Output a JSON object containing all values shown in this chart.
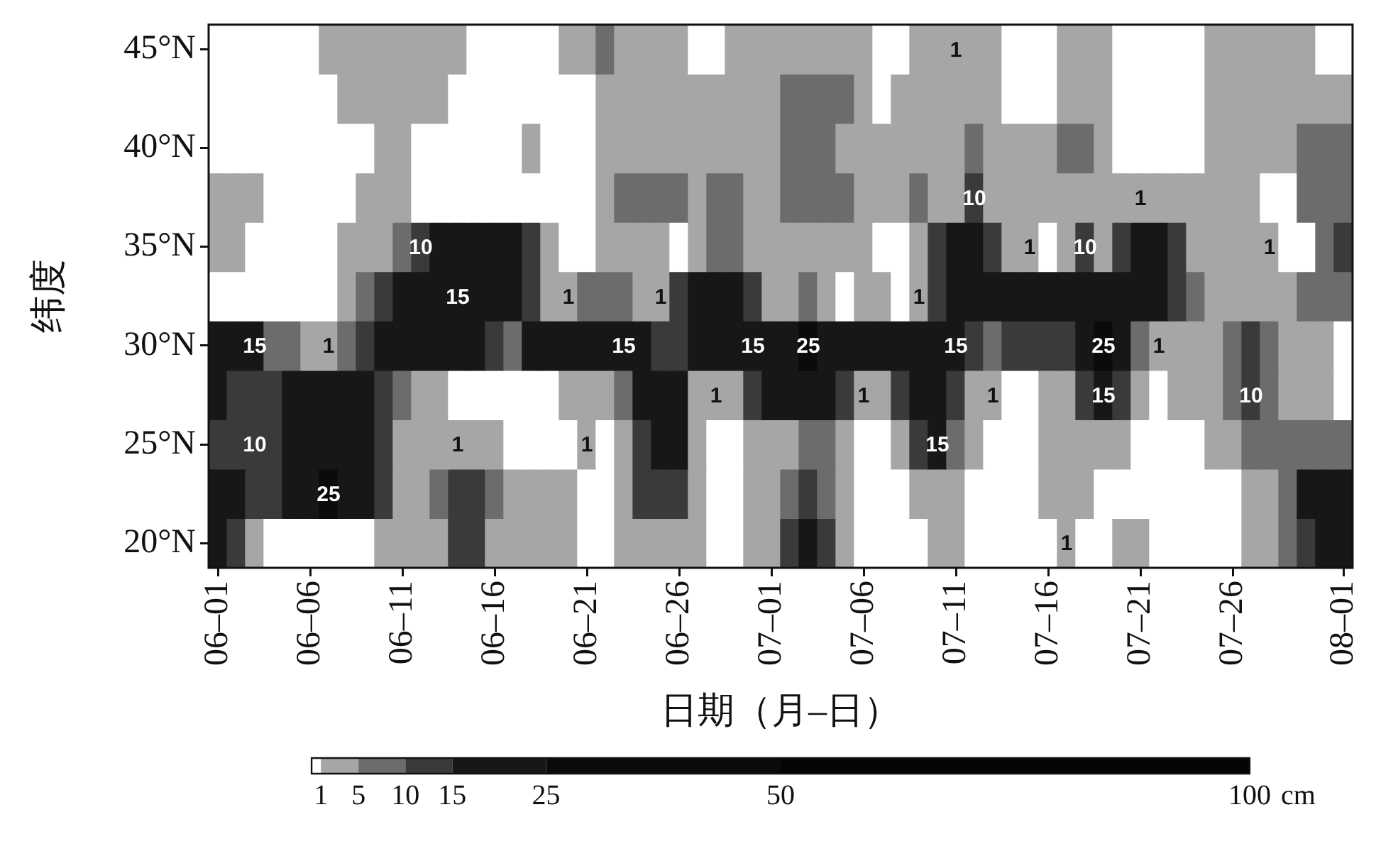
{
  "chart_data": {
    "type": "heatmap",
    "xlabel": "日期（月–日）",
    "ylabel": "纬度",
    "clabel": "cm",
    "categories": [
      "06–01",
      null,
      null,
      null,
      null,
      "06–06",
      null,
      null,
      null,
      null,
      "06–11",
      null,
      null,
      null,
      null,
      "06–16",
      null,
      null,
      null,
      null,
      "06–21",
      null,
      null,
      null,
      null,
      "06–26",
      null,
      null,
      null,
      null,
      "07–01",
      null,
      null,
      null,
      null,
      "07–06",
      null,
      null,
      null,
      null,
      "07–11",
      null,
      null,
      null,
      null,
      "07–16",
      null,
      null,
      null,
      null,
      "07–21",
      null,
      null,
      null,
      null,
      "07–26",
      null,
      null,
      null,
      null,
      null,
      "08–01"
    ],
    "y_categories": [
      "45°N",
      null,
      "40°N",
      null,
      "35°N",
      null,
      "30°N",
      null,
      "25°N",
      null,
      "20°N"
    ],
    "clim": [
      0,
      100
    ],
    "cticks": [
      1,
      5,
      10,
      15,
      25,
      50,
      100
    ],
    "cells": [
      [
        0.5,
        0.5,
        0.5,
        0.5,
        0.5,
        0.5,
        3,
        3,
        3,
        3,
        3,
        3,
        3,
        3,
        0.5,
        0.5,
        0.5,
        0.5,
        0.5,
        3,
        3,
        7,
        3,
        3,
        3,
        3,
        0.5,
        0.5,
        3,
        3,
        3,
        3,
        3,
        3,
        3,
        3,
        0.5,
        0.5,
        3,
        3,
        1,
        3,
        3,
        0.5,
        0.5,
        0.5,
        3,
        3,
        3,
        0.5,
        0.5,
        0.5,
        0.5,
        0.5,
        3,
        3,
        3,
        3,
        3,
        3,
        0.5,
        0.5
      ],
      [
        0.5,
        0.5,
        0.5,
        0.5,
        0.5,
        0.5,
        0.5,
        3,
        3,
        3,
        3,
        3,
        3,
        0.5,
        0.5,
        0.5,
        0.5,
        0.5,
        0.5,
        0.5,
        0.5,
        3,
        3,
        3,
        3,
        3,
        3,
        3,
        3,
        3,
        3,
        7,
        7,
        7,
        7,
        3,
        0.5,
        3,
        3,
        3,
        3,
        3,
        3,
        0.5,
        0.5,
        0.5,
        3,
        3,
        3,
        0.5,
        0.5,
        0.5,
        0.5,
        0.5,
        3,
        3,
        3,
        3,
        3,
        3,
        3,
        3
      ],
      [
        0.5,
        0.5,
        0.5,
        0.5,
        0.5,
        0.5,
        0.5,
        0.5,
        0.5,
        3,
        3,
        0.5,
        0.5,
        0.5,
        0.5,
        0.5,
        0.5,
        3,
        0.5,
        0.5,
        0.5,
        3,
        3,
        3,
        3,
        3,
        3,
        3,
        3,
        3,
        3,
        7,
        7,
        7,
        3,
        3,
        3,
        3,
        3,
        3,
        3,
        7,
        3,
        3,
        3,
        3,
        7,
        7,
        3,
        0.5,
        0.5,
        0.5,
        0.5,
        0.5,
        3,
        3,
        3,
        3,
        3,
        7,
        7,
        7
      ],
      [
        3,
        3,
        3,
        0.5,
        0.5,
        0.5,
        0.5,
        0.5,
        3,
        3,
        3,
        0.5,
        0.5,
        0.5,
        0.5,
        0.5,
        0.5,
        0.5,
        0.5,
        0.5,
        0.5,
        3,
        7,
        7,
        7,
        7,
        3,
        7,
        7,
        3,
        3,
        7,
        7,
        7,
        7,
        3,
        3,
        3,
        7,
        3,
        3,
        10,
        3,
        3,
        3,
        3,
        3,
        3,
        3,
        3,
        1,
        3,
        3,
        3,
        3,
        3,
        3,
        0.5,
        0.5,
        7,
        7,
        7
      ],
      [
        3,
        3,
        0.5,
        0.5,
        0.5,
        0.5,
        0.5,
        3,
        3,
        3,
        7,
        10,
        20,
        20,
        20,
        20,
        20,
        12,
        3,
        0.5,
        0.5,
        3,
        3,
        3,
        3,
        0.5,
        3,
        7,
        7,
        3,
        3,
        3,
        3,
        3,
        3,
        3,
        0.5,
        0.5,
        3,
        12,
        20,
        20,
        12,
        3,
        1,
        0.5,
        3,
        10,
        3,
        12,
        20,
        20,
        12,
        3,
        3,
        3,
        3,
        1,
        0.5,
        0.5,
        7,
        12
      ],
      [
        0.5,
        0.5,
        0.5,
        0.5,
        0.5,
        0.5,
        0.5,
        3,
        7,
        12,
        20,
        20,
        20,
        15,
        20,
        20,
        20,
        12,
        3,
        1,
        7,
        7,
        7,
        3,
        1,
        12,
        20,
        20,
        20,
        12,
        3,
        3,
        7,
        3,
        0.5,
        3,
        3,
        0.5,
        1,
        12,
        20,
        20,
        20,
        20,
        20,
        20,
        20,
        20,
        20,
        20,
        20,
        20,
        12,
        7,
        3,
        3,
        3,
        3,
        3,
        7,
        7,
        7
      ],
      [
        20,
        20,
        15,
        7,
        7,
        3,
        1,
        7,
        12,
        20,
        20,
        20,
        20,
        20,
        20,
        12,
        7,
        20,
        20,
        20,
        20,
        20,
        15,
        20,
        12,
        12,
        20,
        20,
        20,
        15,
        20,
        20,
        25,
        20,
        20,
        20,
        20,
        20,
        20,
        20,
        15,
        12,
        7,
        12,
        12,
        12,
        12,
        20,
        25,
        20,
        7,
        1,
        3,
        3,
        3,
        7,
        12,
        7,
        3,
        3,
        3,
        0.5
      ],
      [
        20,
        12,
        12,
        12,
        20,
        20,
        20,
        20,
        20,
        12,
        7,
        3,
        3,
        0.5,
        0.5,
        0.5,
        0.5,
        0.5,
        0.5,
        3,
        3,
        3,
        7,
        20,
        20,
        20,
        3,
        1,
        3,
        12,
        20,
        20,
        20,
        20,
        12,
        1,
        3,
        12,
        20,
        20,
        12,
        3,
        1,
        0.5,
        0.5,
        3,
        3,
        12,
        15,
        12,
        3,
        0.5,
        3,
        3,
        3,
        7,
        10,
        7,
        3,
        3,
        3,
        0.5
      ],
      [
        12,
        12,
        10,
        12,
        20,
        20,
        20,
        20,
        20,
        12,
        3,
        3,
        3,
        1,
        3,
        3,
        0.5,
        0.5,
        0.5,
        0.5,
        1,
        0.5,
        3,
        12,
        20,
        20,
        3,
        0.5,
        0.5,
        3,
        3,
        3,
        7,
        7,
        3,
        0.5,
        0.5,
        3,
        12,
        15,
        7,
        3,
        0.5,
        0.5,
        0.5,
        3,
        3,
        3,
        3,
        3,
        0.5,
        0.5,
        0.5,
        0.5,
        3,
        3,
        7,
        7,
        7,
        7,
        7,
        7
      ],
      [
        20,
        20,
        12,
        12,
        20,
        20,
        25,
        20,
        20,
        12,
        3,
        3,
        7,
        12,
        12,
        7,
        3,
        3,
        3,
        3,
        0.5,
        0.5,
        3,
        12,
        12,
        12,
        3,
        0.5,
        0.5,
        3,
        3,
        7,
        12,
        7,
        3,
        0.5,
        0.5,
        0.5,
        3,
        3,
        3,
        0.5,
        0.5,
        0.5,
        0.5,
        3,
        3,
        3,
        0.5,
        0.5,
        0.5,
        0.5,
        0.5,
        0.5,
        0.5,
        0.5,
        3,
        3,
        7,
        20,
        20,
        20
      ],
      [
        20,
        12,
        3,
        0.5,
        0.5,
        0.5,
        0.5,
        0.5,
        0.5,
        3,
        3,
        3,
        3,
        12,
        12,
        3,
        3,
        3,
        3,
        3,
        0.5,
        0.5,
        3,
        3,
        3,
        3,
        3,
        0.5,
        0.5,
        3,
        3,
        12,
        20,
        12,
        3,
        0.5,
        0.5,
        0.5,
        0.5,
        3,
        3,
        0.5,
        0.5,
        0.5,
        0.5,
        0.5,
        1,
        0.5,
        0.5,
        3,
        3,
        0.5,
        0.5,
        0.5,
        0.5,
        0.5,
        3,
        3,
        7,
        12,
        20,
        20
      ]
    ],
    "cell_labels": [
      [
        null,
        null,
        null,
        null,
        null,
        null,
        null,
        null,
        null,
        null,
        null,
        null,
        null,
        null,
        null,
        null,
        null,
        null,
        null,
        null,
        null,
        null,
        null,
        null,
        null,
        null,
        null,
        null,
        null,
        null,
        null,
        null,
        null,
        null,
        null,
        null,
        null,
        null,
        null,
        null,
        "1",
        null,
        null,
        null,
        null,
        null,
        null,
        null,
        null,
        null,
        null,
        null,
        null,
        null,
        null,
        null,
        null,
        null,
        null,
        null,
        null,
        null
      ],
      [
        null,
        null,
        null,
        null,
        null,
        null,
        null,
        null,
        null,
        null,
        null,
        null,
        null,
        null,
        null,
        null,
        null,
        null,
        null,
        null,
        null,
        null,
        null,
        null,
        null,
        null,
        null,
        null,
        null,
        null,
        null,
        null,
        null,
        null,
        null,
        null,
        null,
        null,
        null,
        null,
        null,
        null,
        null,
        null,
        null,
        null,
        null,
        null,
        null,
        null,
        null,
        null,
        null,
        null,
        null,
        null,
        null,
        null,
        null,
        null,
        null,
        null
      ],
      [
        null,
        null,
        null,
        null,
        null,
        null,
        null,
        null,
        null,
        null,
        null,
        null,
        null,
        null,
        null,
        null,
        null,
        null,
        null,
        null,
        null,
        null,
        null,
        null,
        null,
        null,
        null,
        null,
        null,
        null,
        null,
        null,
        null,
        null,
        null,
        null,
        null,
        null,
        null,
        null,
        null,
        null,
        null,
        null,
        null,
        null,
        null,
        null,
        null,
        null,
        null,
        null,
        null,
        null,
        null,
        null,
        null,
        null,
        null,
        null,
        null,
        null
      ],
      [
        null,
        null,
        null,
        null,
        null,
        null,
        null,
        null,
        null,
        null,
        null,
        null,
        null,
        null,
        null,
        null,
        null,
        null,
        null,
        null,
        null,
        null,
        null,
        null,
        null,
        null,
        null,
        null,
        null,
        null,
        null,
        null,
        null,
        null,
        null,
        null,
        null,
        null,
        null,
        null,
        null,
        "10",
        null,
        null,
        null,
        null,
        null,
        null,
        null,
        null,
        "1",
        null,
        null,
        null,
        null,
        null,
        null,
        null,
        null,
        null,
        null,
        null
      ],
      [
        null,
        null,
        null,
        null,
        null,
        null,
        null,
        null,
        null,
        null,
        null,
        "10",
        null,
        null,
        null,
        null,
        null,
        null,
        null,
        null,
        null,
        null,
        null,
        null,
        null,
        null,
        null,
        null,
        null,
        null,
        null,
        null,
        null,
        null,
        null,
        null,
        null,
        null,
        null,
        null,
        null,
        null,
        null,
        null,
        "1",
        null,
        null,
        "10",
        null,
        null,
        null,
        null,
        null,
        null,
        null,
        null,
        null,
        "1",
        null,
        null,
        null,
        null
      ],
      [
        null,
        null,
        null,
        null,
        null,
        null,
        null,
        null,
        null,
        null,
        null,
        null,
        null,
        "15",
        null,
        null,
        null,
        null,
        null,
        "1",
        null,
        null,
        null,
        null,
        "1",
        null,
        null,
        null,
        null,
        null,
        null,
        null,
        null,
        null,
        null,
        null,
        null,
        null,
        "1",
        null,
        null,
        null,
        null,
        null,
        null,
        null,
        null,
        null,
        null,
        null,
        null,
        null,
        null,
        null,
        null,
        null,
        null,
        null,
        null,
        null,
        null,
        null
      ],
      [
        null,
        null,
        "15",
        null,
        null,
        null,
        "1",
        null,
        null,
        null,
        null,
        null,
        null,
        null,
        null,
        null,
        null,
        null,
        null,
        null,
        null,
        null,
        "15",
        null,
        null,
        null,
        null,
        null,
        null,
        "15",
        null,
        null,
        "25",
        null,
        null,
        null,
        null,
        null,
        null,
        null,
        "15",
        null,
        null,
        null,
        null,
        null,
        null,
        null,
        "25",
        null,
        null,
        "1",
        null,
        null,
        null,
        null,
        null,
        null,
        null,
        null,
        null,
        null
      ],
      [
        null,
        null,
        null,
        null,
        null,
        null,
        null,
        null,
        null,
        null,
        null,
        null,
        null,
        null,
        null,
        null,
        null,
        null,
        null,
        null,
        null,
        null,
        null,
        null,
        null,
        null,
        null,
        "1",
        null,
        null,
        null,
        null,
        null,
        null,
        null,
        "1",
        null,
        null,
        null,
        null,
        null,
        null,
        "1",
        null,
        null,
        null,
        null,
        null,
        "15",
        null,
        null,
        null,
        null,
        null,
        null,
        null,
        "10",
        null,
        null,
        null,
        null,
        null
      ],
      [
        null,
        null,
        "10",
        null,
        null,
        null,
        null,
        null,
        null,
        null,
        null,
        null,
        null,
        "1",
        null,
        null,
        null,
        null,
        null,
        null,
        "1",
        null,
        null,
        null,
        null,
        null,
        null,
        null,
        null,
        null,
        null,
        null,
        null,
        null,
        null,
        null,
        null,
        null,
        null,
        "15",
        null,
        null,
        null,
        null,
        null,
        null,
        null,
        null,
        null,
        null,
        null,
        null,
        null,
        null,
        null,
        null,
        null,
        null,
        null,
        null,
        null,
        null
      ],
      [
        null,
        null,
        null,
        null,
        null,
        null,
        "25",
        null,
        null,
        null,
        null,
        null,
        null,
        null,
        null,
        null,
        null,
        null,
        null,
        null,
        null,
        null,
        null,
        null,
        null,
        null,
        null,
        null,
        null,
        null,
        null,
        null,
        null,
        null,
        null,
        null,
        null,
        null,
        null,
        null,
        null,
        null,
        null,
        null,
        null,
        null,
        null,
        null,
        null,
        null,
        null,
        null,
        null,
        null,
        null,
        null,
        null,
        null,
        null,
        null,
        null,
        null
      ],
      [
        null,
        null,
        null,
        null,
        null,
        null,
        null,
        null,
        null,
        null,
        null,
        null,
        null,
        null,
        null,
        null,
        null,
        null,
        null,
        null,
        null,
        null,
        null,
        null,
        null,
        null,
        null,
        null,
        null,
        null,
        null,
        null,
        null,
        null,
        null,
        null,
        null,
        null,
        null,
        null,
        null,
        null,
        null,
        null,
        null,
        null,
        "1",
        null,
        null,
        null,
        null,
        null,
        null,
        null,
        null,
        null,
        null,
        null,
        null,
        null,
        null,
        null
      ]
    ]
  }
}
